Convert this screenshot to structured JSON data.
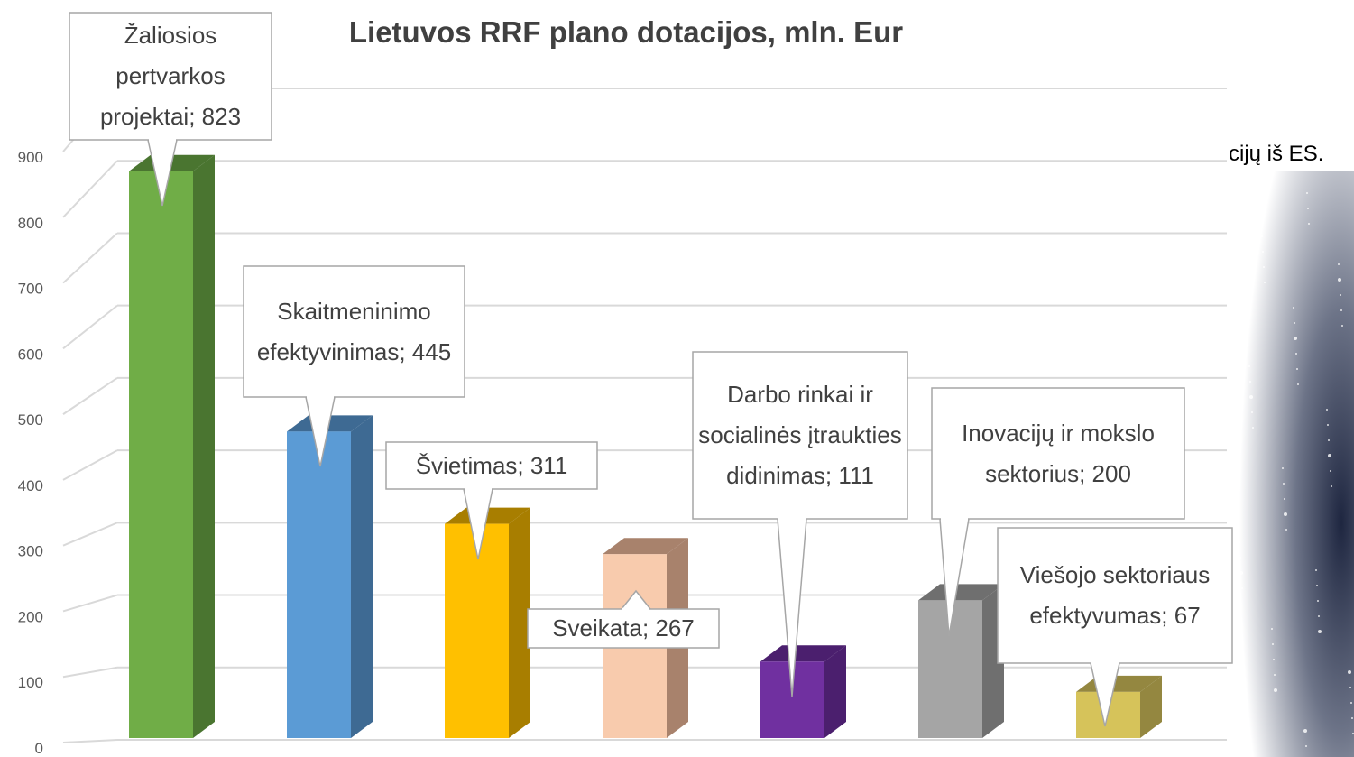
{
  "chart_data": {
    "type": "bar3d",
    "title": "Lietuvos RRF plano dotacijos, mln. Eur",
    "values": [
      823,
      445,
      311,
      267,
      111,
      200,
      67
    ],
    "value_labels": [
      "Žaliosios pertvarkos projektai; 823",
      "Skaitmeninimo efektyvinimas; 445",
      "Švietimas; 311",
      "Sveikata; 267",
      "Darbo rinkai ir socialinės įtraukties didinimas; 111",
      "Inovacijų ir mokslo sektorius; 200",
      "Viešojo sektoriaus efektyvumas; 67"
    ],
    "colors": [
      "#70ad47",
      "#5b9bd5",
      "#ffc000",
      "#f8cbad",
      "#7030a0",
      "#a5a5a5",
      "#d6c35a"
    ],
    "side_colors": [
      "#4a7530",
      "#3e6a93",
      "#a87e00",
      "#a8826c",
      "#4b1f6e",
      "#6f6f6f",
      "#948740"
    ],
    "ylim": [
      0,
      900
    ],
    "yticks": [
      0,
      100,
      200,
      300,
      400,
      500,
      600,
      700,
      800,
      900
    ],
    "grid": true,
    "annotation": "cijų iš ES."
  }
}
